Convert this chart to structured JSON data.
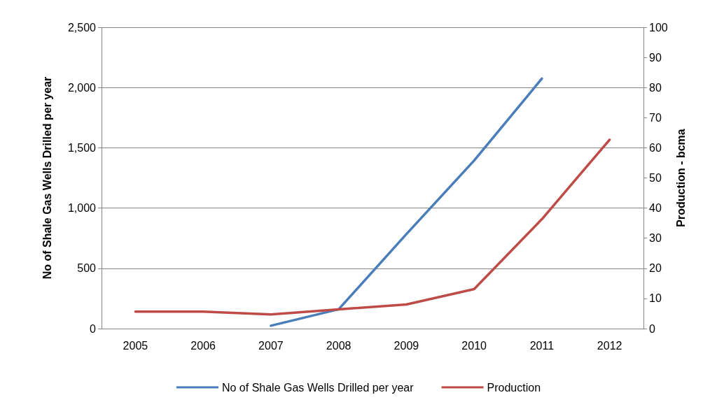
{
  "chart_data": {
    "type": "line",
    "ylabel": "No of Shale Gas Wells Drilled per year",
    "y2label": "Production - bcma",
    "categories": [
      "2005",
      "2006",
      "2007",
      "2008",
      "2009",
      "2010",
      "2011",
      "2012"
    ],
    "series": [
      {
        "name": "No of Shale Gas Wells Drilled per year",
        "color": "#4a7ebb",
        "values": [
          null,
          null,
          24,
          160,
          784,
          1394,
          2074,
          null
        ]
      },
      {
        "name": "Production",
        "color": "#be4b48",
        "axis": "y2",
        "values": [
          5.6,
          5.6,
          4.7,
          6.4,
          8.0,
          13.1,
          36.3,
          62.7
        ]
      }
    ],
    "ylim": [
      0,
      2500
    ],
    "yticks": [
      0,
      {
        "value": 500,
        "label": "500"
      },
      {
        "value": 1000,
        "label": "1,000"
      },
      {
        "value": 1500,
        "label": "1,500"
      },
      {
        "value": 2000,
        "label": "2,000"
      },
      {
        "value": 2500,
        "label": "2,500"
      }
    ],
    "y2lim": [
      0,
      100
    ],
    "y2ticks": [
      0,
      10,
      20,
      30,
      40,
      50,
      60,
      70,
      80,
      90,
      100
    ],
    "grid": "y",
    "legend": "bottom",
    "marker": "none",
    "line_style": "solid"
  }
}
